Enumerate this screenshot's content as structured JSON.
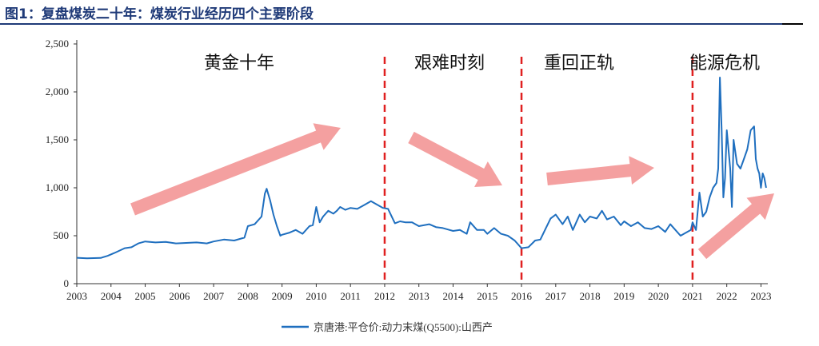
{
  "figure_title": "图1：复盘煤炭二十年：煤炭行业经历四个主要阶段",
  "colors": {
    "title": "#1f3a78",
    "series": "#1f6fbf",
    "divider": "#e02020",
    "arrow": "#f4a0a0"
  },
  "chart_data": {
    "type": "line",
    "title": "图1：复盘煤炭二十年：煤炭行业经历四个主要阶段",
    "xlabel": "",
    "ylabel": "",
    "xlim": [
      2003,
      2023.2
    ],
    "ylim": [
      0,
      2500
    ],
    "x_ticks": [
      "2003",
      "2004",
      "2005",
      "2006",
      "2007",
      "2008",
      "2009",
      "2010",
      "2011",
      "2012",
      "2013",
      "2014",
      "2015",
      "2016",
      "2017",
      "2018",
      "2019",
      "2020",
      "2021",
      "2022",
      "2023"
    ],
    "y_ticks": [
      "0",
      "500",
      "1,000",
      "1,500",
      "2,000",
      "2,500"
    ],
    "grid": false,
    "legend_position": "bottom-center",
    "series": [
      {
        "name": "京唐港:平仓价:动力末煤(Q5500):山西产",
        "x": [
          2003.0,
          2003.3,
          2003.7,
          2003.9,
          2004.1,
          2004.4,
          2004.6,
          2004.8,
          2005.0,
          2005.3,
          2005.6,
          2005.9,
          2006.2,
          2006.5,
          2006.8,
          2007.0,
          2007.3,
          2007.6,
          2007.9,
          2008.0,
          2008.2,
          2008.4,
          2008.5,
          2008.55,
          2008.65,
          2008.75,
          2008.85,
          2008.95,
          2009.0,
          2009.2,
          2009.4,
          2009.6,
          2009.8,
          2009.9,
          2010.0,
          2010.1,
          2010.2,
          2010.35,
          2010.5,
          2010.6,
          2010.7,
          2010.85,
          2011.0,
          2011.2,
          2011.4,
          2011.6,
          2011.8,
          2011.95,
          2012.1,
          2012.3,
          2012.45,
          2012.6,
          2012.8,
          2013.0,
          2013.3,
          2013.5,
          2013.7,
          2013.9,
          2014.0,
          2014.2,
          2014.4,
          2014.5,
          2014.7,
          2014.9,
          2015.0,
          2015.2,
          2015.4,
          2015.6,
          2015.8,
          2016.0,
          2016.2,
          2016.4,
          2016.55,
          2016.7,
          2016.85,
          2017.0,
          2017.2,
          2017.35,
          2017.5,
          2017.7,
          2017.85,
          2018.0,
          2018.2,
          2018.35,
          2018.5,
          2018.7,
          2018.9,
          2019.0,
          2019.2,
          2019.4,
          2019.6,
          2019.8,
          2020.0,
          2020.2,
          2020.35,
          2020.5,
          2020.65,
          2020.8,
          2020.95,
          2021.0,
          2021.1,
          2021.2,
          2021.3,
          2021.4,
          2021.5,
          2021.6,
          2021.7,
          2021.75,
          2021.8,
          2021.85,
          2021.9,
          2021.95,
          2022.0,
          2022.1,
          2022.15,
          2022.2,
          2022.3,
          2022.4,
          2022.5,
          2022.6,
          2022.7,
          2022.8,
          2022.85,
          2022.9,
          2022.95,
          2023.0,
          2023.05,
          2023.1,
          2023.15
        ],
        "values": [
          270,
          265,
          268,
          290,
          320,
          370,
          380,
          420,
          440,
          430,
          435,
          420,
          425,
          430,
          420,
          440,
          460,
          450,
          480,
          600,
          620,
          700,
          940,
          990,
          870,
          720,
          600,
          500,
          510,
          530,
          560,
          520,
          600,
          610,
          800,
          640,
          700,
          760,
          730,
          760,
          800,
          770,
          790,
          780,
          820,
          860,
          820,
          790,
          780,
          630,
          650,
          640,
          640,
          600,
          620,
          590,
          580,
          560,
          550,
          560,
          520,
          640,
          560,
          560,
          520,
          580,
          520,
          500,
          450,
          370,
          380,
          450,
          460,
          570,
          680,
          720,
          620,
          700,
          560,
          720,
          640,
          700,
          680,
          760,
          670,
          700,
          610,
          650,
          600,
          640,
          580,
          570,
          600,
          540,
          620,
          560,
          500,
          530,
          560,
          640,
          560,
          950,
          700,
          750,
          900,
          1000,
          1050,
          1200,
          2150,
          1600,
          900,
          1100,
          1600,
          1200,
          800,
          1500,
          1250,
          1200,
          1300,
          1400,
          1600,
          1640,
          1300,
          1200,
          1150,
          1000,
          1150,
          1100,
          1000
        ]
      }
    ],
    "phase_dividers": [
      2012,
      2016,
      2021
    ],
    "phases": [
      {
        "label": "黄金十年",
        "trend": "up"
      },
      {
        "label": "艰难时刻",
        "trend": "down"
      },
      {
        "label": "重回正轨",
        "trend": "flat-up"
      },
      {
        "label": "能源危机",
        "trend": "up"
      }
    ]
  },
  "legend": {
    "label": "京唐港:平仓价:动力末煤(Q5500):山西产"
  }
}
